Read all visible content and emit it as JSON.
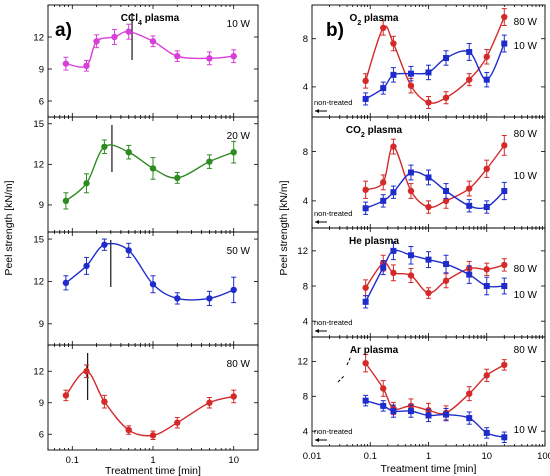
{
  "chart_data": [
    {
      "type": "line",
      "panel_label": "a)",
      "xlabel": "Treatment time [min]",
      "ylabel": "Peel strength [kN/m]",
      "xscale": "log",
      "xlim": [
        0.05,
        20
      ],
      "x_tick_labels": [
        "0.1",
        "1",
        "10"
      ],
      "subplots": [
        {
          "title": "CCl4 plasma",
          "series": [
            {
              "name": "10 W",
              "color": "#d83fd8",
              "x": [
                0.0833,
                0.15,
                0.2,
                0.333,
                0.5,
                1,
                2,
                5,
                10
              ],
              "y": [
                9.5,
                9.3,
                11.6,
                12.0,
                12.5,
                11.6,
                10.2,
                10.0,
                10.2
              ],
              "err": [
                0.6,
                0.5,
                0.6,
                0.7,
                0.7,
                0.5,
                0.5,
                0.6,
                0.6
              ]
            }
          ],
          "ylim": [
            4.5,
            15
          ],
          "yticks": [
            6,
            9,
            12
          ],
          "vline_x": 0.55
        },
        {
          "title": "",
          "series": [
            {
              "name": "20 W",
              "color": "#2e8b22",
              "x": [
                0.0833,
                0.15,
                0.25,
                0.5,
                1,
                2,
                5,
                10
              ],
              "y": [
                9.3,
                10.6,
                13.3,
                12.9,
                11.7,
                11.0,
                12.2,
                12.9
              ],
              "err": [
                0.6,
                0.7,
                0.5,
                0.5,
                0.8,
                0.4,
                0.5,
                0.8
              ]
            }
          ],
          "ylim": [
            7,
            15.5
          ],
          "yticks": [
            9,
            12,
            15
          ],
          "vline_x": 0.31
        },
        {
          "title": "",
          "series": [
            {
              "name": "50 W",
              "color": "#1f2ccc",
              "x": [
                0.0833,
                0.15,
                0.25,
                0.5,
                1,
                2,
                5,
                10
              ],
              "y": [
                11.9,
                13.1,
                14.6,
                14.2,
                11.8,
                10.8,
                10.8,
                11.4
              ],
              "err": [
                0.5,
                0.6,
                0.4,
                0.5,
                0.6,
                0.4,
                0.5,
                0.9
              ]
            }
          ],
          "ylim": [
            7.5,
            15.5
          ],
          "yticks": [
            9,
            12,
            15
          ],
          "vline_x": 0.3
        },
        {
          "title": "",
          "series": [
            {
              "name": "80 W",
              "color": "#d42a2a",
              "x": [
                0.0833,
                0.15,
                0.25,
                0.5,
                1,
                2,
                5,
                10
              ],
              "y": [
                9.7,
                12.0,
                9.1,
                6.4,
                5.9,
                7.1,
                9.0,
                9.6
              ],
              "err": [
                0.5,
                0.6,
                0.6,
                0.4,
                0.4,
                0.5,
                0.5,
                0.6
              ]
            }
          ],
          "ylim": [
            4.5,
            14.5
          ],
          "yticks": [
            6,
            9,
            12
          ],
          "vline_x": 0.155
        }
      ]
    },
    {
      "type": "line",
      "panel_label": "b)",
      "xlabel": "Treatment time [min]",
      "ylabel": "Peel strength [kN/m]",
      "xscale": "log",
      "xlim": [
        0.01,
        100
      ],
      "x_tick_labels": [
        "0.01",
        "0.1",
        "1",
        "10",
        "100"
      ],
      "subplots": [
        {
          "title": "O2 plasma",
          "ylim": [
            1.5,
            10.8
          ],
          "yticks": [
            4,
            8
          ],
          "untreated_label": "non-treated",
          "series": [
            {
              "name": "80 W",
              "color": "#d42a2a",
              "x": [
                0.0833,
                0.167,
                0.25,
                0.5,
                1,
                2,
                5,
                10,
                20
              ],
              "y": [
                4.5,
                8.9,
                7.6,
                4.1,
                2.7,
                3.1,
                4.6,
                6.5,
                9.8
              ],
              "err": [
                0.6,
                0.6,
                0.6,
                0.6,
                0.5,
                0.5,
                0.5,
                0.6,
                0.7
              ]
            },
            {
              "name": "10 W",
              "color": "#1f2ccc",
              "x": [
                0.0833,
                0.167,
                0.25,
                0.5,
                1,
                2,
                5,
                10,
                20
              ],
              "y": [
                3.0,
                3.9,
                5.0,
                5.1,
                5.2,
                6.4,
                6.9,
                4.6,
                7.6
              ],
              "err": [
                0.5,
                0.5,
                0.6,
                0.6,
                0.6,
                0.6,
                0.7,
                0.6,
                0.7
              ]
            }
          ]
        },
        {
          "title": "CO2 plasma",
          "ylim": [
            1.8,
            10.8
          ],
          "yticks": [
            4,
            8
          ],
          "untreated_label": "non-treated",
          "series": [
            {
              "name": "80 W",
              "color": "#d42a2a",
              "x": [
                0.0833,
                0.167,
                0.25,
                0.5,
                1,
                2,
                5,
                10,
                20
              ],
              "y": [
                4.9,
                5.5,
                8.4,
                4.8,
                3.5,
                4.0,
                5.0,
                6.6,
                8.5
              ],
              "err": [
                0.7,
                0.6,
                0.6,
                0.6,
                0.5,
                0.6,
                0.6,
                0.7,
                0.8
              ]
            },
            {
              "name": "10 W",
              "color": "#1f2ccc",
              "x": [
                0.0833,
                0.167,
                0.25,
                0.5,
                1,
                2,
                5,
                10,
                20
              ],
              "y": [
                3.4,
                4.0,
                4.7,
                6.3,
                5.9,
                4.8,
                3.6,
                3.5,
                4.8
              ],
              "err": [
                0.5,
                0.5,
                0.5,
                0.6,
                0.6,
                0.6,
                0.5,
                0.5,
                0.7
              ]
            }
          ]
        },
        {
          "title": "He plasma",
          "ylim": [
            2.2,
            14.6
          ],
          "yticks": [
            4,
            8,
            12
          ],
          "untreated_label": "non-treated",
          "series": [
            {
              "name": "80 W",
              "color": "#d42a2a",
              "x": [
                0.0833,
                0.167,
                0.25,
                0.5,
                1,
                2,
                5,
                10,
                20
              ],
              "y": [
                7.8,
                10.6,
                9.5,
                9.2,
                7.2,
                8.6,
                10.0,
                9.9,
                10.4
              ],
              "err": [
                0.9,
                0.9,
                0.9,
                0.8,
                0.6,
                0.8,
                0.8,
                0.7,
                0.7
              ]
            },
            {
              "name": "10 W",
              "color": "#1f2ccc",
              "x": [
                0.0833,
                0.167,
                0.25,
                0.5,
                1,
                2,
                5,
                10,
                20
              ],
              "y": [
                6.2,
                10.1,
                12.0,
                11.5,
                11.0,
                10.5,
                9.3,
                8.0,
                8.0
              ],
              "err": [
                0.7,
                0.8,
                1.0,
                1.0,
                0.9,
                1.0,
                1.0,
                1.0,
                0.9
              ]
            }
          ]
        },
        {
          "title": "Ar plasma",
          "ylim": [
            2.3,
            14.8
          ],
          "yticks": [
            4,
            8,
            12
          ],
          "untreated_label": "non-treated",
          "series": [
            {
              "name": "80 W",
              "color": "#d42a2a",
              "x": [
                0.0833,
                0.167,
                0.25,
                0.5,
                1,
                2,
                5,
                10,
                20
              ],
              "y": [
                11.8,
                8.9,
                6.6,
                6.9,
                6.4,
                6.1,
                8.3,
                10.4,
                11.6
              ],
              "err": [
                1.0,
                0.9,
                0.7,
                0.8,
                0.8,
                0.8,
                0.8,
                0.7,
                0.6
              ]
            },
            {
              "name": "10 W",
              "color": "#1f2ccc",
              "x": [
                0.0833,
                0.167,
                0.25,
                0.5,
                1,
                2,
                5,
                10,
                20
              ],
              "y": [
                7.5,
                6.9,
                6.3,
                6.3,
                5.8,
                5.9,
                5.5,
                3.8,
                3.3
              ],
              "err": [
                0.6,
                0.6,
                0.7,
                0.7,
                0.7,
                0.7,
                0.7,
                0.6,
                0.6
              ]
            }
          ]
        }
      ]
    }
  ]
}
